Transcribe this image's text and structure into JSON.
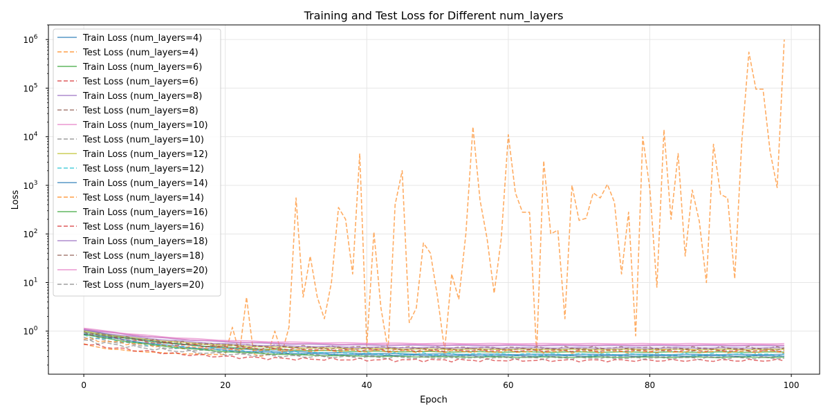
{
  "chart_data": {
    "type": "line",
    "title": "Training and Test Loss for Different num_layers",
    "xlabel": "Epoch",
    "ylabel": "Loss",
    "xlim": [
      -5,
      104
    ],
    "ylim": [
      0.13,
      2000000
    ],
    "yscale": "log",
    "xticks": [
      0,
      20,
      40,
      60,
      80,
      100
    ],
    "yticks": [
      {
        "value": 1,
        "base": "10",
        "exp": "0"
      },
      {
        "value": 10,
        "base": "10",
        "exp": "1"
      },
      {
        "value": 100,
        "base": "10",
        "exp": "2"
      },
      {
        "value": 1000,
        "base": "10",
        "exp": "3"
      },
      {
        "value": 10000,
        "base": "10",
        "exp": "4"
      },
      {
        "value": 100000,
        "base": "10",
        "exp": "5"
      },
      {
        "value": 1000000,
        "base": "10",
        "exp": "6"
      }
    ],
    "grid": true,
    "legend_position": "upper-left",
    "series": [
      {
        "name": "Train Loss (num_layers=4)",
        "color": "#1f77b4",
        "style": "solid",
        "start": 1.05,
        "end": 0.33,
        "pattern": "smooth"
      },
      {
        "name": "Test Loss (num_layers=4)",
        "color": "#ff7f0e",
        "style": "dashed",
        "pattern": "explicit",
        "values": [
          0.55,
          0.5,
          0.47,
          0.44,
          0.42,
          0.42,
          0.4,
          0.39,
          0.38,
          0.37,
          0.37,
          0.36,
          0.35,
          0.35,
          0.34,
          0.34,
          0.34,
          0.33,
          0.33,
          0.33,
          0.33,
          1.2,
          0.35,
          5.0,
          0.34,
          0.3,
          0.33,
          1.0,
          0.35,
          1.2,
          550,
          5,
          35,
          5,
          1.8,
          10,
          350,
          200,
          15,
          4500,
          0.5,
          110,
          3,
          0.4,
          400,
          2000,
          1.5,
          3,
          65,
          40,
          5,
          0.4,
          15,
          4.5,
          100,
          16000,
          500,
          80,
          6,
          80,
          11000,
          700,
          280,
          280,
          0.35,
          3200,
          100,
          120,
          1.8,
          1000,
          190,
          210,
          700,
          550,
          1050,
          450,
          15,
          280,
          0.8,
          10000,
          850,
          8,
          14000,
          200,
          4500,
          35,
          800,
          180,
          10,
          7000,
          650,
          550,
          12,
          8000,
          550000,
          95000,
          95000,
          5000,
          900,
          1000000
        ]
      },
      {
        "name": "Train Loss (num_layers=6)",
        "color": "#2ca02c",
        "style": "solid",
        "start": 0.95,
        "end": 0.37,
        "pattern": "smooth"
      },
      {
        "name": "Test Loss (num_layers=6)",
        "color": "#d62728",
        "style": "dashed",
        "start": 0.85,
        "end": 0.4,
        "pattern": "noisy"
      },
      {
        "name": "Train Loss (num_layers=8)",
        "color": "#9467bd",
        "style": "solid",
        "start": 1.12,
        "end": 0.5,
        "pattern": "smooth"
      },
      {
        "name": "Test Loss (num_layers=8)",
        "color": "#8c564b",
        "style": "dashed",
        "start": 0.9,
        "end": 0.45,
        "pattern": "noisy"
      },
      {
        "name": "Train Loss (num_layers=10)",
        "color": "#e377c2",
        "style": "solid",
        "start": 1.15,
        "end": 0.55,
        "pattern": "smooth"
      },
      {
        "name": "Test Loss (num_layers=10)",
        "color": "#7f7f7f",
        "style": "dashed",
        "start": 0.75,
        "end": 0.3,
        "pattern": "noisy"
      },
      {
        "name": "Train Loss (num_layers=12)",
        "color": "#bcbd22",
        "style": "solid",
        "start": 1.0,
        "end": 0.42,
        "pattern": "smooth"
      },
      {
        "name": "Test Loss (num_layers=12)",
        "color": "#17becf",
        "style": "dashed",
        "start": 0.8,
        "end": 0.33,
        "pattern": "noisy"
      },
      {
        "name": "Train Loss (num_layers=14)",
        "color": "#1f77b4",
        "style": "solid",
        "start": 0.9,
        "end": 0.31,
        "pattern": "smooth"
      },
      {
        "name": "Test Loss (num_layers=14)",
        "color": "#ff7f0e",
        "style": "dashed",
        "start": 0.7,
        "end": 0.38,
        "pattern": "noisy"
      },
      {
        "name": "Train Loss (num_layers=16)",
        "color": "#2ca02c",
        "style": "solid",
        "start": 0.85,
        "end": 0.29,
        "pattern": "smooth"
      },
      {
        "name": "Test Loss (num_layers=16)",
        "color": "#d62728",
        "style": "dashed",
        "start": 0.55,
        "end": 0.25,
        "pattern": "noisy"
      },
      {
        "name": "Train Loss (num_layers=18)",
        "color": "#9467bd",
        "style": "solid",
        "start": 1.05,
        "end": 0.45,
        "pattern": "smooth"
      },
      {
        "name": "Test Loss (num_layers=18)",
        "color": "#8c564b",
        "style": "dashed",
        "start": 0.95,
        "end": 0.42,
        "pattern": "noisy"
      },
      {
        "name": "Train Loss (num_layers=20)",
        "color": "#e377c2",
        "style": "solid",
        "start": 1.1,
        "end": 0.52,
        "pattern": "smooth"
      },
      {
        "name": "Test Loss (num_layers=20)",
        "color": "#7f7f7f",
        "style": "dashed",
        "start": 0.65,
        "end": 0.28,
        "pattern": "noisy"
      }
    ]
  }
}
